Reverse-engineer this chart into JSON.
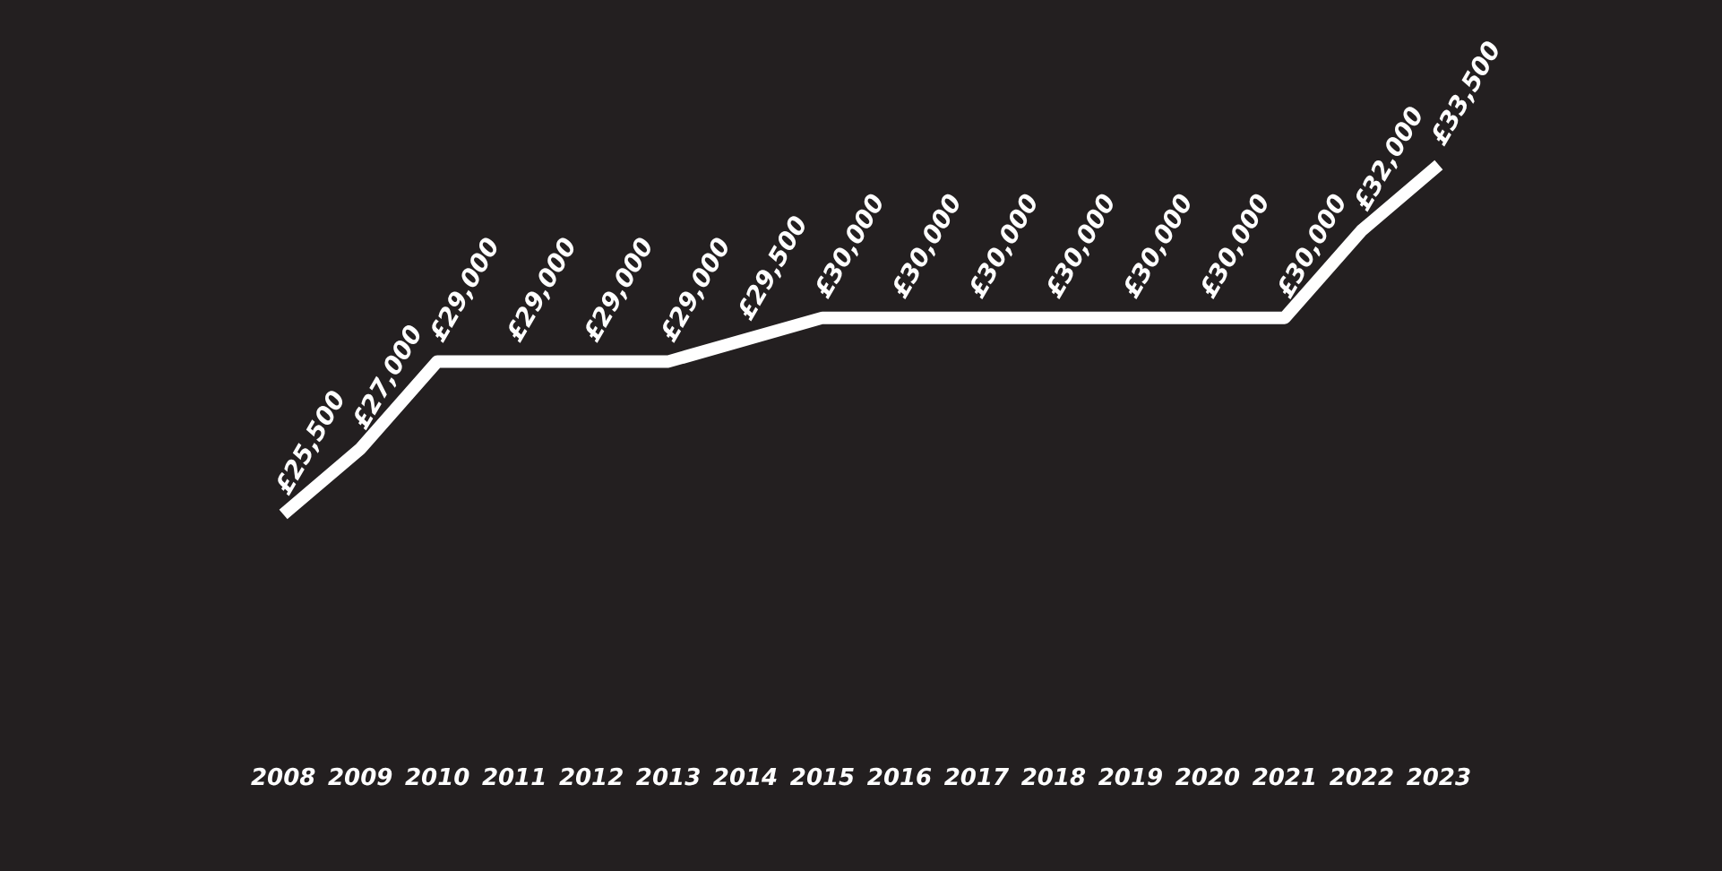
{
  "chart_data": {
    "type": "line",
    "categories": [
      "2008",
      "2009",
      "2010",
      "2011",
      "2012",
      "2013",
      "2014",
      "2015",
      "2016",
      "2017",
      "2018",
      "2019",
      "2020",
      "2021",
      "2022",
      "2023"
    ],
    "series": [
      {
        "color": "#ffffff",
        "values": [
          25500,
          27000,
          29000,
          29000,
          29000,
          29000,
          29500,
          30000,
          30000,
          30000,
          30000,
          30000,
          30000,
          30000,
          32000,
          33500
        ],
        "value_labels": [
          "£25,500",
          "£27,000",
          "£29,000",
          "£29,000",
          "£29,000",
          "£29,000",
          "£29,500",
          "£30,000",
          "£30,000",
          "£30,000",
          "£30,000",
          "£30,000",
          "£30,000",
          "£30,000",
          "£32,000",
          "£33,500"
        ]
      }
    ],
    "legend": false,
    "marker": "none",
    "line_style": "solid",
    "tick_labels": "x"
  }
}
